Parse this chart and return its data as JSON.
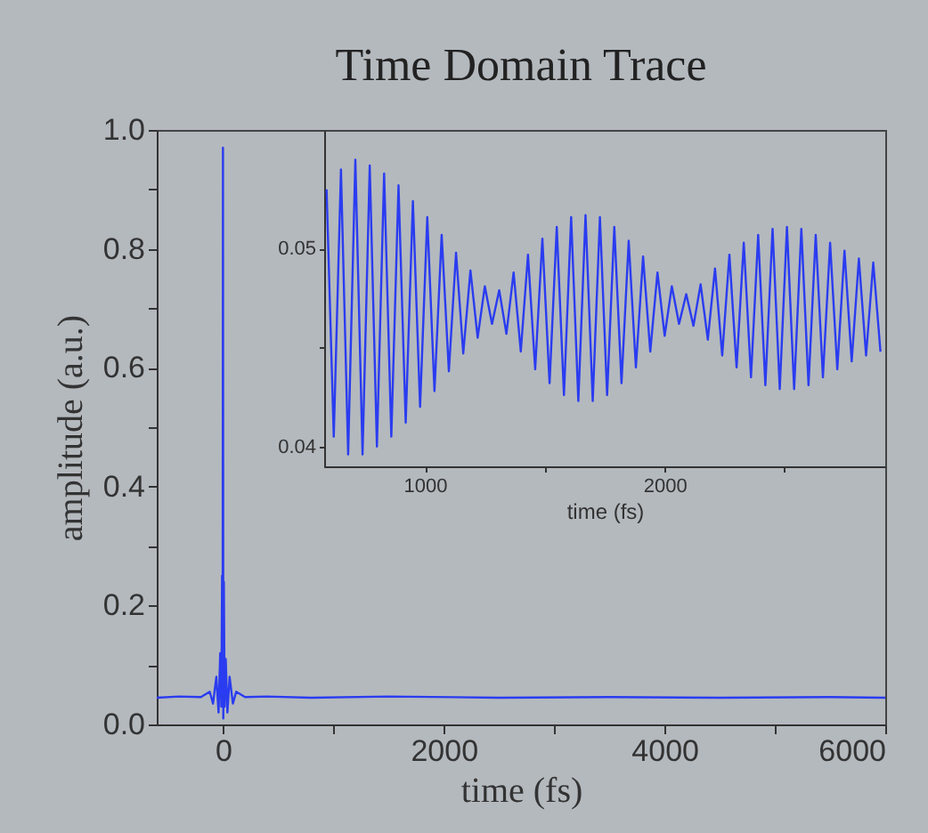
{
  "chart_data": [
    {
      "type": "line",
      "title": "Time Domain Trace",
      "xlabel": "time (fs)",
      "ylabel": "amplitude (a.u.)",
      "x": [
        -600,
        -400,
        -200,
        -120,
        -90,
        -60,
        -40,
        -25,
        -15,
        -8,
        -3,
        0,
        3,
        8,
        15,
        25,
        40,
        60,
        90,
        120,
        200,
        400,
        800,
        1500,
        2500,
        3500,
        4500,
        5500,
        6000
      ],
      "series": [
        {
          "color": "#2a3cf0",
          "values": [
            0.045,
            0.047,
            0.046,
            0.055,
            0.035,
            0.08,
            0.02,
            0.12,
            0.03,
            0.25,
            0.05,
            0.97,
            0.01,
            0.24,
            0.03,
            0.11,
            0.02,
            0.08,
            0.035,
            0.055,
            0.046,
            0.047,
            0.045,
            0.047,
            0.045,
            0.046,
            0.045,
            0.046,
            0.045
          ]
        }
      ],
      "xlim": [
        -600,
        6000
      ],
      "ylim": [
        0,
        1.0
      ],
      "xticks": [
        0,
        {
          "value": 1000,
          "label": null
        },
        2000,
        {
          "value": 3000,
          "label": null
        },
        4000,
        {
          "value": 5000,
          "label": null
        },
        6000
      ],
      "yticks": [
        {
          "value": 0,
          "label": "0.0"
        },
        {
          "value": 0.1,
          "label": null
        },
        {
          "value": 0.2,
          "label": "0.2"
        },
        {
          "value": 0.3,
          "label": null
        },
        {
          "value": 0.4,
          "label": "0.4"
        },
        {
          "value": 0.5,
          "label": null
        },
        {
          "value": 0.6,
          "label": "0.6"
        },
        {
          "value": 0.7,
          "label": null
        },
        {
          "value": 0.8,
          "label": "0.8"
        },
        {
          "value": 0.9,
          "label": null
        },
        {
          "value": 1.0,
          "label": "1.0"
        }
      ]
    },
    {
      "type": "line",
      "xlabel": "time (fs)",
      "x": [
        590,
        620,
        650,
        680,
        710,
        740,
        770,
        800,
        830,
        860,
        890,
        920,
        950,
        980,
        1010,
        1040,
        1070,
        1100,
        1130,
        1160,
        1190,
        1220,
        1250,
        1280,
        1310,
        1340,
        1370,
        1400,
        1430,
        1460,
        1490,
        1520,
        1550,
        1580,
        1610,
        1640,
        1670,
        1700,
        1730,
        1760,
        1790,
        1820,
        1850,
        1880,
        1910,
        1940,
        1970,
        2000,
        2030,
        2060,
        2090,
        2120,
        2150,
        2180,
        2210,
        2240,
        2270,
        2300,
        2330,
        2360,
        2390,
        2420,
        2450,
        2480,
        2510,
        2540,
        2570,
        2600,
        2630,
        2660,
        2690,
        2720,
        2750,
        2780,
        2810,
        2840,
        2870,
        2900
      ],
      "series": [
        {
          "color": "#2a3cf0",
          "values": [
            0.053,
            0.0405,
            0.054,
            0.0396,
            0.0545,
            0.0396,
            0.0542,
            0.04,
            0.0538,
            0.0405,
            0.0532,
            0.0412,
            0.0524,
            0.042,
            0.0516,
            0.0428,
            0.0507,
            0.0438,
            0.0498,
            0.0447,
            0.0489,
            0.0455,
            0.0481,
            0.0462,
            0.0479,
            0.0457,
            0.0488,
            0.0448,
            0.0497,
            0.0439,
            0.0505,
            0.0432,
            0.0511,
            0.0426,
            0.0516,
            0.0423,
            0.0517,
            0.0423,
            0.0516,
            0.0426,
            0.0511,
            0.0432,
            0.0504,
            0.044,
            0.0496,
            0.0448,
            0.0488,
            0.0456,
            0.0481,
            0.0462,
            0.0477,
            0.0461,
            0.0482,
            0.0454,
            0.049,
            0.0446,
            0.0497,
            0.044,
            0.0503,
            0.0435,
            0.0507,
            0.0431,
            0.051,
            0.0429,
            0.0511,
            0.0429,
            0.051,
            0.0431,
            0.0507,
            0.0435,
            0.0503,
            0.0439,
            0.0499,
            0.0443,
            0.0495,
            0.0446,
            0.0493,
            0.0448
          ]
        }
      ],
      "xlim": [
        580,
        2920
      ],
      "ylim": [
        0.039,
        0.056
      ],
      "xticks": [
        1000,
        {
          "value": 1500,
          "label": null
        },
        2000,
        {
          "value": 2500,
          "label": null
        }
      ],
      "yticks": [
        0.04,
        {
          "value": 0.045,
          "label": null
        },
        0.05
      ]
    }
  ]
}
